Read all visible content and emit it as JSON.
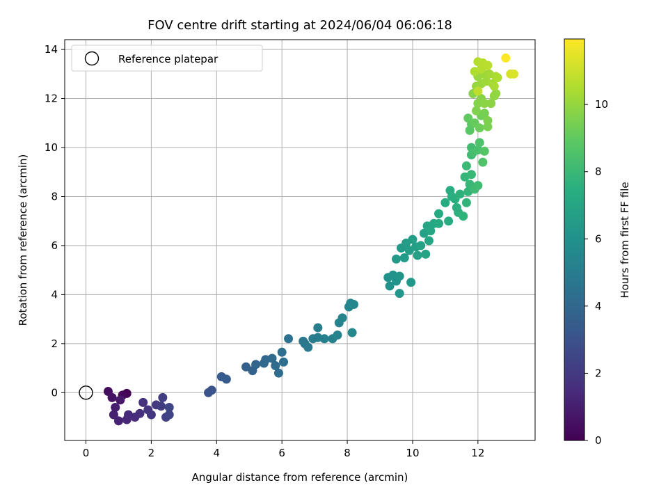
{
  "chart_data": {
    "type": "scatter",
    "title": "FOV centre drift starting at 2024/06/04 06:06:18",
    "xlabel": "Angular distance from reference (arcmin)",
    "ylabel": "Rotation from reference (arcmin)",
    "xlim": [
      -0.65,
      13.75
    ],
    "ylim": [
      -1.95,
      14.4
    ],
    "xticks": [
      0,
      2,
      4,
      6,
      8,
      10,
      12
    ],
    "yticks": [
      0,
      2,
      4,
      6,
      8,
      10,
      12,
      14
    ],
    "grid": true,
    "legend": {
      "position": "top-left",
      "entries": [
        "Reference platepar"
      ]
    },
    "reference": {
      "x": 0,
      "y": 0
    },
    "colorbar": {
      "label": "Hours from first FF file",
      "min": 0,
      "max": 11.95,
      "ticks": [
        0,
        2,
        4,
        6,
        8,
        10
      ],
      "colormap": "viridis"
    },
    "series": [
      {
        "color_by": "hours",
        "points": [
          {
            "x": 1.25,
            "y": -0.03,
            "h": 0.0
          },
          {
            "x": 1.12,
            "y": -0.1,
            "h": 0.2
          },
          {
            "x": 0.68,
            "y": 0.05,
            "h": 0.4
          },
          {
            "x": 0.8,
            "y": -0.2,
            "h": 0.6
          },
          {
            "x": 1.05,
            "y": -0.3,
            "h": 0.8
          },
          {
            "x": 0.9,
            "y": -0.6,
            "h": 1.0
          },
          {
            "x": 0.85,
            "y": -0.9,
            "h": 1.1
          },
          {
            "x": 1.0,
            "y": -1.15,
            "h": 1.2
          },
          {
            "x": 1.25,
            "y": -1.1,
            "h": 1.3
          },
          {
            "x": 1.3,
            "y": -0.9,
            "h": 1.4
          },
          {
            "x": 1.5,
            "y": -1.0,
            "h": 1.5
          },
          {
            "x": 1.65,
            "y": -0.85,
            "h": 1.6
          },
          {
            "x": 1.75,
            "y": -0.4,
            "h": 1.7
          },
          {
            "x": 1.9,
            "y": -0.7,
            "h": 1.8
          },
          {
            "x": 2.0,
            "y": -0.9,
            "h": 1.9
          },
          {
            "x": 2.15,
            "y": -0.5,
            "h": 2.0
          },
          {
            "x": 2.3,
            "y": -0.55,
            "h": 2.1
          },
          {
            "x": 2.35,
            "y": -0.2,
            "h": 2.2
          },
          {
            "x": 2.45,
            "y": -1.0,
            "h": 2.3
          },
          {
            "x": 2.55,
            "y": -0.9,
            "h": 2.4
          },
          {
            "x": 2.55,
            "y": -0.6,
            "h": 2.5
          },
          {
            "x": 3.75,
            "y": 0.0,
            "h": 3.0
          },
          {
            "x": 3.85,
            "y": 0.1,
            "h": 3.1
          },
          {
            "x": 4.15,
            "y": 0.65,
            "h": 3.3
          },
          {
            "x": 4.3,
            "y": 0.55,
            "h": 3.4
          },
          {
            "x": 4.9,
            "y": 1.05,
            "h": 3.7
          },
          {
            "x": 5.1,
            "y": 0.9,
            "h": 3.8
          },
          {
            "x": 5.2,
            "y": 1.15,
            "h": 3.9
          },
          {
            "x": 5.45,
            "y": 1.2,
            "h": 4.0
          },
          {
            "x": 5.5,
            "y": 1.35,
            "h": 4.05
          },
          {
            "x": 5.7,
            "y": 1.4,
            "h": 4.1
          },
          {
            "x": 5.8,
            "y": 1.1,
            "h": 4.15
          },
          {
            "x": 5.9,
            "y": 0.8,
            "h": 4.2
          },
          {
            "x": 6.0,
            "y": 1.65,
            "h": 4.3
          },
          {
            "x": 6.05,
            "y": 1.25,
            "h": 4.35
          },
          {
            "x": 6.2,
            "y": 2.2,
            "h": 4.5
          },
          {
            "x": 6.65,
            "y": 2.1,
            "h": 4.7
          },
          {
            "x": 6.7,
            "y": 2.0,
            "h": 4.75
          },
          {
            "x": 6.8,
            "y": 1.85,
            "h": 4.8
          },
          {
            "x": 6.95,
            "y": 2.2,
            "h": 4.9
          },
          {
            "x": 7.1,
            "y": 2.25,
            "h": 5.0
          },
          {
            "x": 7.1,
            "y": 2.65,
            "h": 5.05
          },
          {
            "x": 7.3,
            "y": 2.2,
            "h": 5.1
          },
          {
            "x": 7.55,
            "y": 2.2,
            "h": 5.2
          },
          {
            "x": 7.7,
            "y": 2.35,
            "h": 5.25
          },
          {
            "x": 7.75,
            "y": 2.85,
            "h": 5.3
          },
          {
            "x": 7.85,
            "y": 3.05,
            "h": 5.35
          },
          {
            "x": 8.05,
            "y": 3.5,
            "h": 5.4
          },
          {
            "x": 8.1,
            "y": 3.65,
            "h": 5.45
          },
          {
            "x": 8.2,
            "y": 3.6,
            "h": 5.5
          },
          {
            "x": 8.15,
            "y": 2.45,
            "h": 5.6
          },
          {
            "x": 9.25,
            "y": 4.7,
            "h": 6.0
          },
          {
            "x": 9.3,
            "y": 4.35,
            "h": 6.05
          },
          {
            "x": 9.4,
            "y": 4.8,
            "h": 6.1
          },
          {
            "x": 9.5,
            "y": 4.55,
            "h": 6.15
          },
          {
            "x": 9.6,
            "y": 4.75,
            "h": 6.2
          },
          {
            "x": 9.6,
            "y": 4.05,
            "h": 6.25
          },
          {
            "x": 9.95,
            "y": 4.5,
            "h": 6.3
          },
          {
            "x": 9.5,
            "y": 5.45,
            "h": 6.4
          },
          {
            "x": 9.65,
            "y": 5.9,
            "h": 6.45
          },
          {
            "x": 9.75,
            "y": 5.5,
            "h": 6.5
          },
          {
            "x": 9.8,
            "y": 6.1,
            "h": 6.55
          },
          {
            "x": 9.9,
            "y": 5.8,
            "h": 6.6
          },
          {
            "x": 10.0,
            "y": 6.25,
            "h": 6.65
          },
          {
            "x": 10.1,
            "y": 5.95,
            "h": 6.7
          },
          {
            "x": 10.15,
            "y": 5.6,
            "h": 6.75
          },
          {
            "x": 10.25,
            "y": 6.0,
            "h": 6.8
          },
          {
            "x": 10.35,
            "y": 6.5,
            "h": 6.85
          },
          {
            "x": 10.4,
            "y": 5.65,
            "h": 6.9
          },
          {
            "x": 10.45,
            "y": 6.8,
            "h": 6.95
          },
          {
            "x": 10.5,
            "y": 6.2,
            "h": 7.0
          },
          {
            "x": 10.55,
            "y": 6.6,
            "h": 7.05
          },
          {
            "x": 10.65,
            "y": 6.9,
            "h": 7.1
          },
          {
            "x": 10.8,
            "y": 6.9,
            "h": 7.2
          },
          {
            "x": 10.8,
            "y": 7.3,
            "h": 7.25
          },
          {
            "x": 11.0,
            "y": 7.75,
            "h": 7.3
          },
          {
            "x": 11.1,
            "y": 7.0,
            "h": 7.35
          },
          {
            "x": 11.15,
            "y": 8.25,
            "h": 7.4
          },
          {
            "x": 11.2,
            "y": 8.0,
            "h": 7.45
          },
          {
            "x": 11.3,
            "y": 7.9,
            "h": 7.5
          },
          {
            "x": 11.35,
            "y": 7.55,
            "h": 7.55
          },
          {
            "x": 11.4,
            "y": 7.35,
            "h": 7.6
          },
          {
            "x": 11.45,
            "y": 8.1,
            "h": 7.65
          },
          {
            "x": 11.55,
            "y": 7.2,
            "h": 7.7
          },
          {
            "x": 11.65,
            "y": 7.75,
            "h": 7.75
          },
          {
            "x": 11.7,
            "y": 8.2,
            "h": 7.8
          },
          {
            "x": 11.6,
            "y": 8.8,
            "h": 7.85
          },
          {
            "x": 11.75,
            "y": 8.5,
            "h": 7.9
          },
          {
            "x": 11.8,
            "y": 8.9,
            "h": 7.95
          },
          {
            "x": 11.65,
            "y": 9.25,
            "h": 8.0
          },
          {
            "x": 11.8,
            "y": 9.7,
            "h": 8.05
          },
          {
            "x": 11.9,
            "y": 8.3,
            "h": 8.1
          },
          {
            "x": 12.0,
            "y": 8.45,
            "h": 8.15
          },
          {
            "x": 11.8,
            "y": 10.0,
            "h": 8.2
          },
          {
            "x": 11.85,
            "y": 9.8,
            "h": 8.3
          },
          {
            "x": 12.0,
            "y": 9.9,
            "h": 8.4
          },
          {
            "x": 12.05,
            "y": 10.2,
            "h": 8.5
          },
          {
            "x": 12.15,
            "y": 9.4,
            "h": 8.6
          },
          {
            "x": 12.2,
            "y": 9.85,
            "h": 8.7
          },
          {
            "x": 11.75,
            "y": 10.7,
            "h": 8.8
          },
          {
            "x": 11.8,
            "y": 10.95,
            "h": 8.9
          },
          {
            "x": 11.7,
            "y": 11.2,
            "h": 9.0
          },
          {
            "x": 11.9,
            "y": 11.0,
            "h": 9.1
          },
          {
            "x": 12.05,
            "y": 10.8,
            "h": 9.2
          },
          {
            "x": 12.1,
            "y": 11.3,
            "h": 9.3
          },
          {
            "x": 12.2,
            "y": 11.4,
            "h": 9.4
          },
          {
            "x": 12.3,
            "y": 10.85,
            "h": 9.5
          },
          {
            "x": 12.3,
            "y": 11.1,
            "h": 9.55
          },
          {
            "x": 11.95,
            "y": 11.5,
            "h": 9.6
          },
          {
            "x": 12.0,
            "y": 11.8,
            "h": 9.65
          },
          {
            "x": 12.1,
            "y": 12.0,
            "h": 9.7
          },
          {
            "x": 11.85,
            "y": 12.2,
            "h": 9.75
          },
          {
            "x": 12.2,
            "y": 11.8,
            "h": 9.8
          },
          {
            "x": 12.4,
            "y": 11.8,
            "h": 9.85
          },
          {
            "x": 12.5,
            "y": 12.1,
            "h": 9.9
          },
          {
            "x": 12.55,
            "y": 12.2,
            "h": 9.95
          },
          {
            "x": 11.95,
            "y": 12.5,
            "h": 10.0
          },
          {
            "x": 12.0,
            "y": 12.9,
            "h": 10.05
          },
          {
            "x": 12.1,
            "y": 12.6,
            "h": 10.1
          },
          {
            "x": 12.2,
            "y": 13.0,
            "h": 10.15
          },
          {
            "x": 12.25,
            "y": 12.7,
            "h": 10.2
          },
          {
            "x": 12.35,
            "y": 13.0,
            "h": 10.25
          },
          {
            "x": 12.45,
            "y": 12.6,
            "h": 10.3
          },
          {
            "x": 12.5,
            "y": 12.5,
            "h": 10.35
          },
          {
            "x": 12.55,
            "y": 12.9,
            "h": 10.4
          },
          {
            "x": 12.6,
            "y": 12.85,
            "h": 10.45
          },
          {
            "x": 11.9,
            "y": 13.1,
            "h": 10.5
          },
          {
            "x": 12.0,
            "y": 13.5,
            "h": 10.55
          },
          {
            "x": 12.1,
            "y": 13.2,
            "h": 10.6
          },
          {
            "x": 12.15,
            "y": 13.45,
            "h": 10.65
          },
          {
            "x": 12.3,
            "y": 13.35,
            "h": 10.7
          },
          {
            "x": 12.0,
            "y": 12.3,
            "h": 10.75
          },
          {
            "x": 13.0,
            "y": 13.0,
            "h": 11.2
          },
          {
            "x": 13.1,
            "y": 13.0,
            "h": 11.3
          },
          {
            "x": 12.85,
            "y": 13.65,
            "h": 11.95
          }
        ]
      }
    ]
  }
}
